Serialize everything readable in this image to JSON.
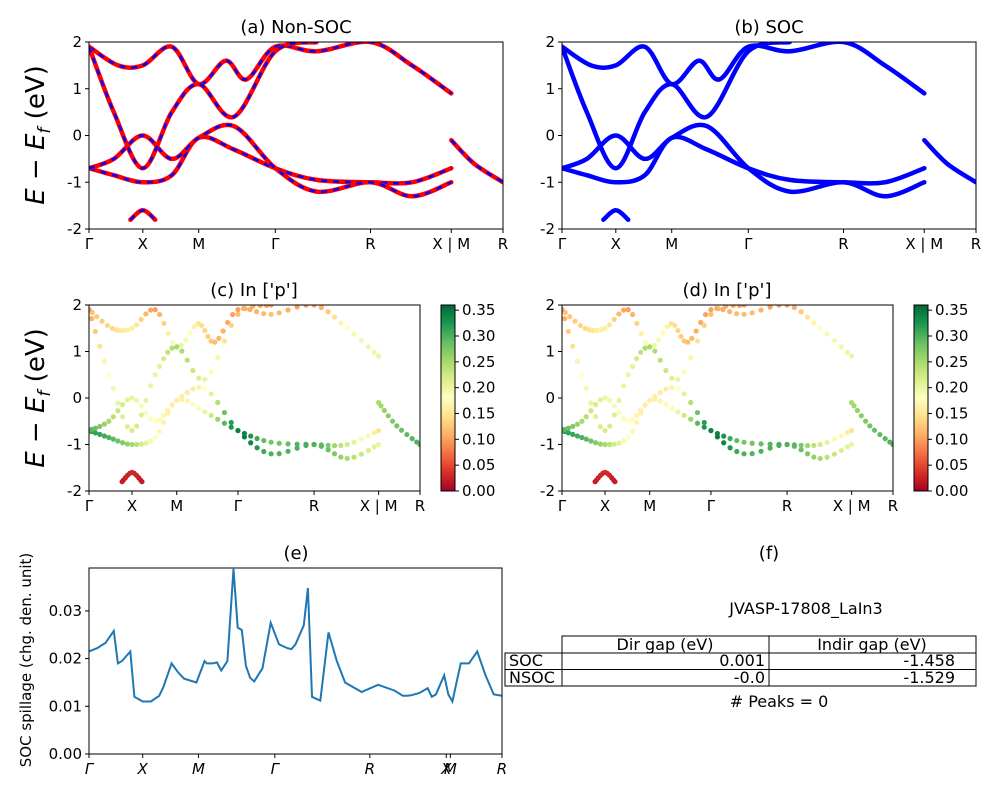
{
  "chart_data": [
    {
      "id": "a",
      "type": "line",
      "title": "(a) Non-SOC",
      "ylabel": "E − E_f (eV)",
      "ylim": [
        -2,
        2
      ],
      "yticks": [
        -2,
        -1,
        0,
        1,
        2
      ],
      "xticks": [
        "Γ",
        "X",
        "M",
        "Γ",
        "R",
        "X | M",
        "R"
      ],
      "xtick_pos": [
        0,
        0.13,
        0.265,
        0.45,
        0.68,
        0.875,
        1.0
      ],
      "series": [
        {
          "style": "red solid + blue dashed",
          "x": [
            0,
            0.06,
            0.13,
            0.2,
            0.265,
            0.35,
            0.45,
            0.55,
            0.68,
            0.78,
            0.875
          ],
          "y": [
            -0.7,
            -0.85,
            -1.0,
            -0.85,
            -0.05,
            -0.3,
            -0.7,
            -0.95,
            -1.0,
            -1.0,
            -0.7
          ]
        },
        {
          "style": "red solid + blue dashed",
          "x": [
            0,
            0.06,
            0.13,
            0.2,
            0.265,
            0.35,
            0.45,
            0.55,
            0.68,
            0.78,
            0.875
          ],
          "y": [
            -0.7,
            -0.5,
            0.0,
            -0.5,
            -0.05,
            0.2,
            -0.7,
            -1.2,
            -1.0,
            -1.3,
            -1.0
          ]
        },
        {
          "style": "red solid + blue dashed",
          "x": [
            0,
            0.07,
            0.13,
            0.2,
            0.265,
            0.33,
            0.38,
            0.45,
            0.55,
            0.68,
            0.78,
            0.875
          ],
          "y": [
            1.9,
            1.5,
            1.5,
            1.9,
            1.1,
            1.6,
            1.2,
            1.9,
            1.8,
            2.0,
            1.5,
            0.9
          ]
        },
        {
          "style": "red solid + blue dashed",
          "x": [
            0,
            0.06,
            0.13,
            0.2,
            0.265,
            0.35,
            0.45,
            0.55
          ],
          "y": [
            1.9,
            0.5,
            -0.7,
            0.5,
            1.1,
            0.4,
            1.8,
            2.0
          ]
        },
        {
          "style": "red solid + blue dashed",
          "x": [
            0.1,
            0.13,
            0.16
          ],
          "y": [
            -1.8,
            -1.6,
            -1.8
          ]
        },
        {
          "style": "red solid + blue dashed",
          "x": [
            0.875,
            0.93,
            1.0
          ],
          "y": [
            -0.1,
            -0.6,
            -1.0
          ]
        }
      ]
    },
    {
      "id": "b",
      "type": "line",
      "title": "(b) SOC",
      "ylabel": "",
      "ylim": [
        -2,
        2
      ],
      "yticks": [
        -2,
        -1,
        0,
        1,
        2
      ],
      "xticks": [
        "Γ",
        "X",
        "M",
        "Γ",
        "R",
        "X | M",
        "R"
      ],
      "xtick_pos": [
        0,
        0.13,
        0.265,
        0.45,
        0.68,
        0.875,
        1.0
      ],
      "series": [
        {
          "style": "blue solid",
          "x": [
            0,
            0.06,
            0.13,
            0.2,
            0.265,
            0.35,
            0.45,
            0.55,
            0.68,
            0.78,
            0.875
          ],
          "y": [
            -0.7,
            -0.85,
            -1.0,
            -0.85,
            -0.05,
            -0.3,
            -0.7,
            -0.95,
            -1.0,
            -1.0,
            -0.7
          ]
        },
        {
          "style": "blue solid",
          "x": [
            0,
            0.06,
            0.13,
            0.2,
            0.265,
            0.35,
            0.45,
            0.55,
            0.68,
            0.78,
            0.875
          ],
          "y": [
            -0.7,
            -0.5,
            0.0,
            -0.5,
            -0.05,
            0.2,
            -0.7,
            -1.2,
            -1.0,
            -1.3,
            -1.0
          ]
        },
        {
          "style": "blue solid",
          "x": [
            0,
            0.07,
            0.13,
            0.2,
            0.265,
            0.33,
            0.38,
            0.45,
            0.55,
            0.68,
            0.78,
            0.875
          ],
          "y": [
            1.9,
            1.5,
            1.5,
            1.9,
            1.1,
            1.6,
            1.2,
            1.9,
            1.8,
            2.0,
            1.5,
            0.9
          ]
        },
        {
          "style": "blue solid",
          "x": [
            0,
            0.06,
            0.13,
            0.2,
            0.265,
            0.35,
            0.45,
            0.55
          ],
          "y": [
            1.9,
            0.5,
            -0.7,
            0.5,
            1.1,
            0.4,
            1.8,
            2.0
          ]
        },
        {
          "style": "blue solid",
          "x": [
            0.1,
            0.13,
            0.16
          ],
          "y": [
            -1.8,
            -1.6,
            -1.8
          ]
        },
        {
          "style": "blue solid",
          "x": [
            0.875,
            0.93,
            1.0
          ],
          "y": [
            -0.1,
            -0.6,
            -1.0
          ]
        }
      ]
    },
    {
      "id": "c",
      "type": "scatter",
      "title": "(c)  In ['p']",
      "ylabel": "E − E_f (eV)",
      "ylim": [
        -2,
        2
      ],
      "yticks": [
        -2,
        -1,
        0,
        1,
        2
      ],
      "xticks": [
        "Γ",
        "X",
        "M",
        "Γ",
        "R",
        "X | M",
        "R"
      ],
      "xtick_pos": [
        0,
        0.13,
        0.265,
        0.45,
        0.68,
        0.875,
        1.0
      ],
      "colorbar": {
        "min": 0.0,
        "max": 0.36,
        "ticks": [
          "0.00",
          "0.05",
          "0.10",
          "0.15",
          "0.20",
          "0.25",
          "0.30",
          "0.35"
        ],
        "colormap": "RdYlGn"
      },
      "bands": [
        {
          "x": [
            0,
            0.06,
            0.13,
            0.2,
            0.265,
            0.35,
            0.45,
            0.55,
            0.68,
            0.78,
            0.875
          ],
          "y": [
            -0.7,
            -0.85,
            -1.0,
            -0.85,
            -0.05,
            -0.3,
            -0.7,
            -0.95,
            -1.0,
            -1.0,
            -0.7
          ],
          "w": [
            0.32,
            0.3,
            0.25,
            0.18,
            0.16,
            0.2,
            0.34,
            0.28,
            0.3,
            0.22,
            0.15
          ]
        },
        {
          "x": [
            0,
            0.06,
            0.13,
            0.2,
            0.265,
            0.35,
            0.45,
            0.55,
            0.68,
            0.78,
            0.875
          ],
          "y": [
            -0.7,
            -0.5,
            0.0,
            -0.5,
            -0.05,
            0.2,
            -0.7,
            -1.2,
            -1.0,
            -1.3,
            -1.0
          ],
          "w": [
            0.3,
            0.25,
            0.2,
            0.18,
            0.16,
            0.18,
            0.34,
            0.3,
            0.3,
            0.25,
            0.2
          ]
        },
        {
          "x": [
            0,
            0.07,
            0.13,
            0.2,
            0.265,
            0.33,
            0.38,
            0.45,
            0.55,
            0.68,
            0.78,
            0.875
          ],
          "y": [
            1.9,
            1.5,
            1.5,
            1.9,
            1.1,
            1.6,
            1.2,
            1.9,
            1.8,
            2.0,
            1.5,
            0.9
          ],
          "w": [
            0.12,
            0.14,
            0.16,
            0.1,
            0.2,
            0.15,
            0.12,
            0.1,
            0.12,
            0.1,
            0.18,
            0.2
          ]
        },
        {
          "x": [
            0,
            0.06,
            0.13,
            0.2,
            0.265,
            0.35,
            0.45,
            0.55
          ],
          "y": [
            1.9,
            0.5,
            -0.7,
            0.5,
            1.1,
            0.4,
            1.8,
            2.0
          ],
          "w": [
            0.1,
            0.18,
            0.22,
            0.2,
            0.25,
            0.2,
            0.12,
            0.1
          ]
        },
        {
          "x": [
            0.1,
            0.13,
            0.16
          ],
          "y": [
            -1.8,
            -1.6,
            -1.8
          ],
          "w": [
            0.02,
            0.03,
            0.02
          ]
        },
        {
          "x": [
            0.875,
            0.93,
            1.0
          ],
          "y": [
            -0.1,
            -0.6,
            -1.0
          ],
          "w": [
            0.25,
            0.28,
            0.3
          ]
        }
      ]
    },
    {
      "id": "d",
      "type": "scatter",
      "title": "(d) In ['p']",
      "ylabel": "",
      "ylim": [
        -2,
        2
      ],
      "yticks": [
        -2,
        -1,
        0,
        1,
        2
      ],
      "xticks": [
        "Γ",
        "X",
        "M",
        "Γ",
        "R",
        "X | M",
        "R"
      ],
      "xtick_pos": [
        0,
        0.13,
        0.265,
        0.45,
        0.68,
        0.875,
        1.0
      ],
      "colorbar": {
        "min": 0.0,
        "max": 0.36,
        "ticks": [
          "0.00",
          "0.05",
          "0.10",
          "0.15",
          "0.20",
          "0.25",
          "0.30",
          "0.35"
        ],
        "colormap": "RdYlGn"
      },
      "bands": [
        {
          "x": [
            0,
            0.06,
            0.13,
            0.2,
            0.265,
            0.35,
            0.45,
            0.55,
            0.68,
            0.78,
            0.875
          ],
          "y": [
            -0.7,
            -0.85,
            -1.0,
            -0.85,
            -0.05,
            -0.3,
            -0.7,
            -0.95,
            -1.0,
            -1.0,
            -0.7
          ],
          "w": [
            0.32,
            0.3,
            0.25,
            0.18,
            0.16,
            0.2,
            0.34,
            0.28,
            0.3,
            0.22,
            0.15
          ]
        },
        {
          "x": [
            0,
            0.06,
            0.13,
            0.2,
            0.265,
            0.35,
            0.45,
            0.55,
            0.68,
            0.78,
            0.875
          ],
          "y": [
            -0.7,
            -0.5,
            0.0,
            -0.5,
            -0.05,
            0.2,
            -0.7,
            -1.2,
            -1.0,
            -1.3,
            -1.0
          ],
          "w": [
            0.3,
            0.25,
            0.2,
            0.18,
            0.16,
            0.18,
            0.34,
            0.3,
            0.3,
            0.25,
            0.2
          ]
        },
        {
          "x": [
            0,
            0.07,
            0.13,
            0.2,
            0.265,
            0.33,
            0.38,
            0.45,
            0.55,
            0.68,
            0.78,
            0.875
          ],
          "y": [
            1.9,
            1.5,
            1.5,
            1.9,
            1.1,
            1.6,
            1.2,
            1.9,
            1.8,
            2.0,
            1.5,
            0.9
          ],
          "w": [
            0.12,
            0.14,
            0.16,
            0.1,
            0.2,
            0.15,
            0.12,
            0.1,
            0.12,
            0.1,
            0.18,
            0.2
          ]
        },
        {
          "x": [
            0,
            0.06,
            0.13,
            0.2,
            0.265,
            0.35,
            0.45,
            0.55
          ],
          "y": [
            1.9,
            0.5,
            -0.7,
            0.5,
            1.1,
            0.4,
            1.8,
            2.0
          ],
          "w": [
            0.1,
            0.18,
            0.22,
            0.2,
            0.25,
            0.2,
            0.12,
            0.1
          ]
        },
        {
          "x": [
            0.1,
            0.13,
            0.16
          ],
          "y": [
            -1.8,
            -1.6,
            -1.8
          ],
          "w": [
            0.02,
            0.03,
            0.02
          ]
        },
        {
          "x": [
            0.875,
            0.93,
            1.0
          ],
          "y": [
            -0.1,
            -0.6,
            -1.0
          ],
          "w": [
            0.25,
            0.28,
            0.3
          ]
        }
      ]
    },
    {
      "id": "e",
      "type": "line",
      "title": "(e)",
      "ylabel": "SOC spillage (chg. den. unit)",
      "ylim": [
        0,
        0.039
      ],
      "yticks": [
        "0.00",
        "0.01",
        "0.02",
        "0.03"
      ],
      "xticks": [
        "Γ",
        "X",
        "M",
        "Γ",
        "R",
        "X",
        "M",
        "R"
      ],
      "xtick_pos": [
        0,
        0.13,
        0.265,
        0.45,
        0.68,
        0.865,
        0.875,
        1.0
      ],
      "line_color": "#1f77b4",
      "series": [
        {
          "x": [
            0,
            0.02,
            0.04,
            0.06,
            0.07,
            0.08,
            0.1,
            0.11,
            0.13,
            0.15,
            0.17,
            0.18,
            0.2,
            0.215,
            0.23,
            0.26,
            0.28,
            0.285,
            0.3,
            0.31,
            0.32,
            0.335,
            0.35,
            0.36,
            0.37,
            0.38,
            0.39,
            0.4,
            0.42,
            0.44,
            0.46,
            0.48,
            0.49,
            0.5,
            0.52,
            0.53,
            0.54,
            0.56,
            0.58,
            0.6,
            0.62,
            0.66,
            0.7,
            0.74,
            0.76,
            0.77,
            0.78,
            0.8,
            0.82,
            0.83,
            0.84,
            0.86,
            0.87,
            0.88,
            0.9,
            0.92,
            0.94,
            0.96,
            0.98,
            1.0
          ],
          "y": [
            0.0215,
            0.0222,
            0.0233,
            0.0258,
            0.019,
            0.0195,
            0.0215,
            0.012,
            0.011,
            0.011,
            0.0122,
            0.014,
            0.019,
            0.0172,
            0.0158,
            0.015,
            0.0195,
            0.019,
            0.019,
            0.0192,
            0.0175,
            0.0195,
            0.0388,
            0.0265,
            0.026,
            0.0185,
            0.016,
            0.0152,
            0.018,
            0.0275,
            0.023,
            0.0222,
            0.022,
            0.023,
            0.027,
            0.0348,
            0.012,
            0.0112,
            0.0255,
            0.0195,
            0.015,
            0.013,
            0.0145,
            0.0133,
            0.0122,
            0.0122,
            0.0123,
            0.0128,
            0.0138,
            0.012,
            0.0125,
            0.0165,
            0.0125,
            0.011,
            0.019,
            0.019,
            0.0215,
            0.0165,
            0.0125,
            0.0122
          ]
        }
      ]
    }
  ],
  "info_panel": {
    "title": "(f)",
    "material": "JVASP-17808_LaIn3",
    "table": {
      "headers": [
        "",
        "Dir gap (eV)",
        "Indir gap (eV)"
      ],
      "rows": [
        [
          "SOC",
          "0.001",
          "-1.458"
        ],
        [
          "NSOC",
          "-0.0",
          "-1.529"
        ]
      ]
    },
    "peaks": "# Peaks = 0"
  }
}
